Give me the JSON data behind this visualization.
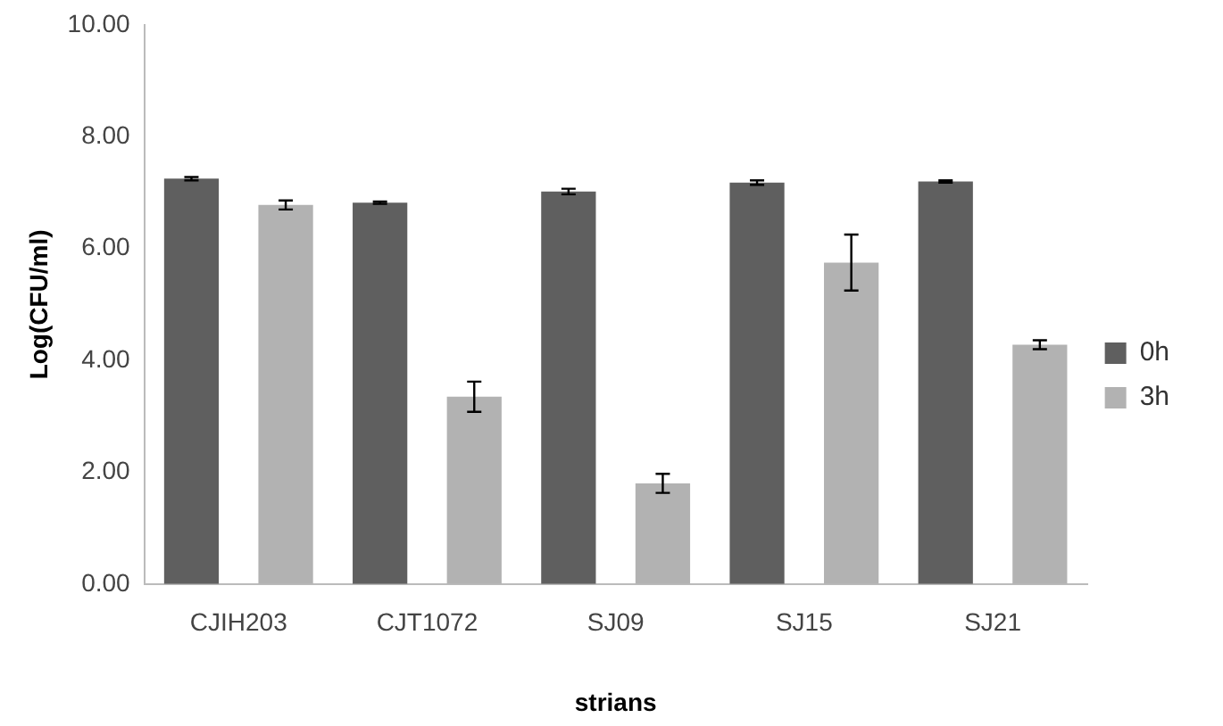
{
  "chart_data": {
    "type": "bar",
    "xlabel": "strians",
    "ylabel": "Log(CFU/ml)",
    "categories": [
      "CJIH203",
      "CJT1072",
      "SJ09",
      "SJ15",
      "SJ21"
    ],
    "series": [
      {
        "name": "0h",
        "color": "#5f5f5f",
        "values": [
          7.25,
          6.82,
          7.02,
          7.18,
          7.2
        ],
        "errors": [
          0.03,
          0.02,
          0.05,
          0.04,
          0.02
        ]
      },
      {
        "name": "3h",
        "color": "#b2b2b2",
        "values": [
          6.78,
          3.35,
          1.8,
          5.75,
          4.28
        ],
        "errors": [
          0.08,
          0.27,
          0.17,
          0.5,
          0.08
        ]
      }
    ],
    "ylim": [
      0,
      10
    ],
    "yticks": [
      {
        "value": 0,
        "label": "0.00"
      },
      {
        "value": 2,
        "label": "2.00"
      },
      {
        "value": 4,
        "label": "4.00"
      },
      {
        "value": 6,
        "label": "6.00"
      },
      {
        "value": 8,
        "label": "8.00"
      },
      {
        "value": 10,
        "label": "10.00"
      }
    ],
    "grid": false,
    "legend": "right"
  }
}
